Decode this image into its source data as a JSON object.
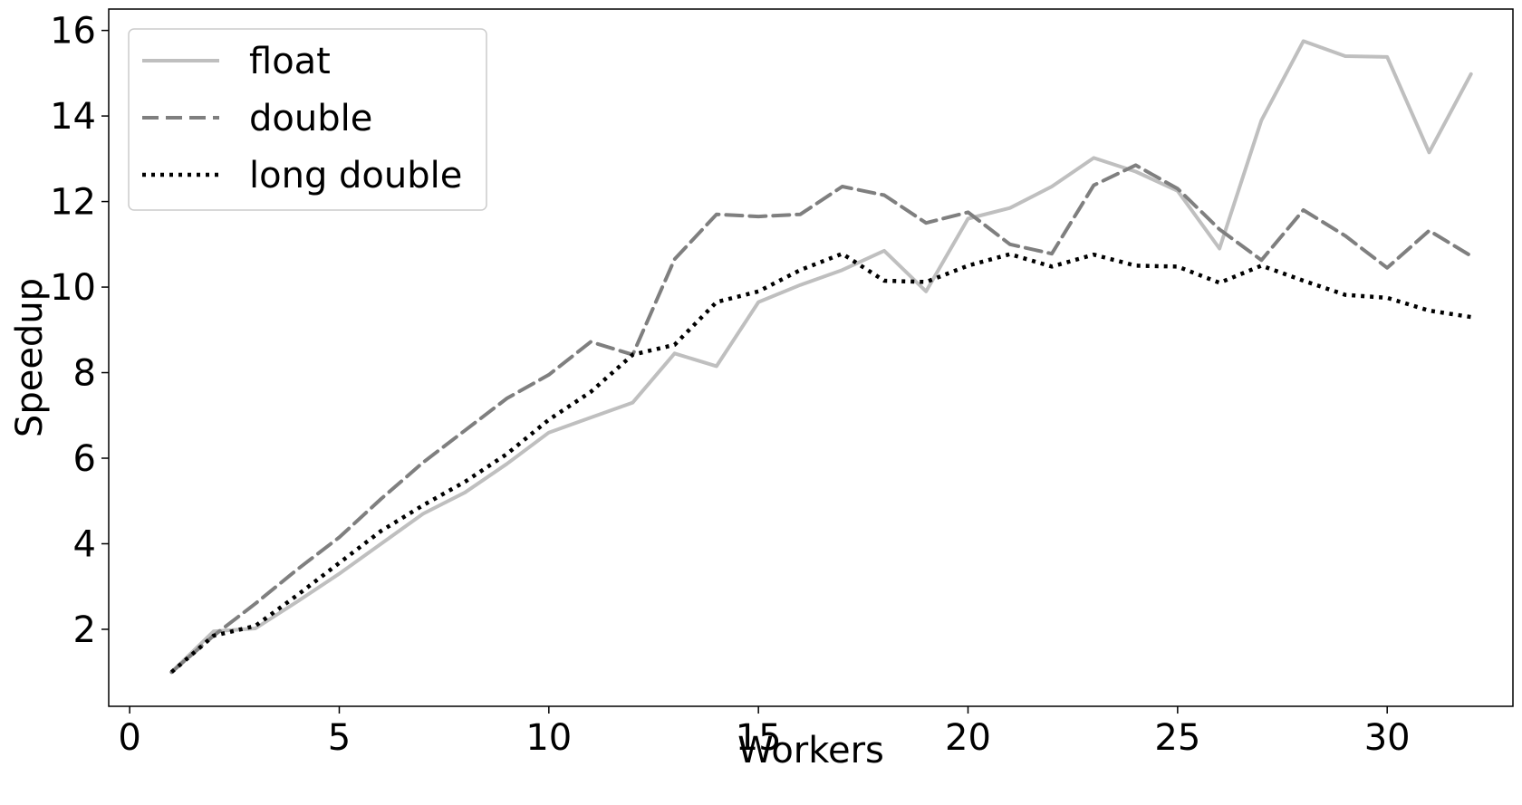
{
  "chart_data": {
    "type": "line",
    "title": "",
    "xlabel": "Workers",
    "ylabel": "Speedup",
    "xlim": [
      -0.5,
      33.0
    ],
    "ylim": [
      0.2,
      16.5
    ],
    "xticks": [
      0,
      5,
      10,
      15,
      20,
      25,
      30
    ],
    "yticks": [
      2,
      4,
      6,
      8,
      10,
      12,
      14,
      16
    ],
    "grid": false,
    "legend_position": "upper-left",
    "x": [
      1,
      2,
      3,
      4,
      5,
      6,
      7,
      8,
      9,
      10,
      11,
      12,
      13,
      14,
      15,
      16,
      17,
      18,
      19,
      20,
      21,
      22,
      23,
      24,
      25,
      26,
      27,
      28,
      29,
      30,
      31,
      32
    ],
    "series": [
      {
        "name": "float",
        "color": "#bfbfbf",
        "style": "solid",
        "values": [
          1.0,
          1.95,
          2.02,
          2.65,
          3.3,
          4.0,
          4.7,
          5.2,
          5.87,
          6.6,
          6.95,
          7.3,
          8.45,
          8.15,
          9.65,
          10.05,
          10.4,
          10.85,
          9.9,
          11.6,
          11.85,
          12.35,
          13.02,
          12.7,
          12.25,
          10.9,
          13.9,
          15.75,
          15.4,
          15.38,
          13.15,
          14.98
        ]
      },
      {
        "name": "double",
        "color": "#7f7f7f",
        "style": "dashed",
        "values": [
          1.0,
          1.85,
          2.6,
          3.4,
          4.15,
          5.05,
          5.9,
          6.65,
          7.4,
          7.95,
          8.72,
          8.42,
          10.65,
          11.7,
          11.65,
          11.7,
          12.35,
          12.15,
          11.5,
          11.75,
          11.0,
          10.78,
          12.38,
          12.85,
          12.3,
          11.35,
          10.63,
          11.8,
          11.2,
          10.45,
          11.32,
          10.73
        ]
      },
      {
        "name": "long double",
        "color": "#000000",
        "style": "dotted",
        "values": [
          1.0,
          1.85,
          2.08,
          2.8,
          3.55,
          4.3,
          4.9,
          5.45,
          6.1,
          6.9,
          7.55,
          8.42,
          8.65,
          9.65,
          9.9,
          10.4,
          10.78,
          10.15,
          10.12,
          10.5,
          10.77,
          10.48,
          10.76,
          10.5,
          10.48,
          10.1,
          10.5,
          10.15,
          9.82,
          9.75,
          9.45,
          9.3
        ]
      }
    ]
  }
}
